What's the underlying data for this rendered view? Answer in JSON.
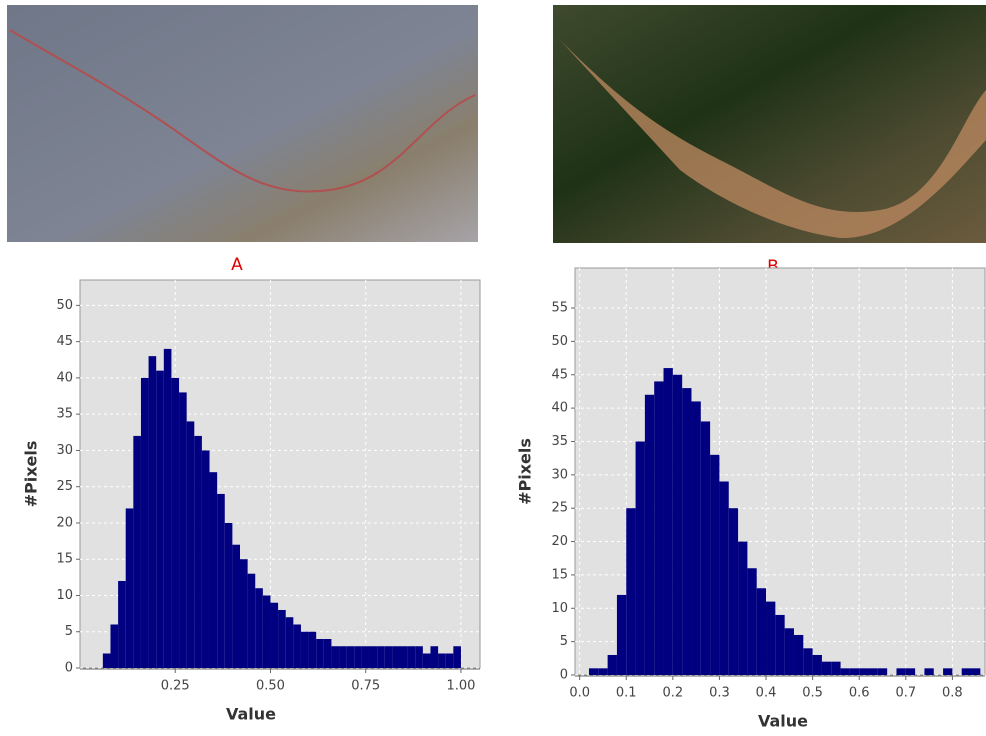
{
  "chart_data": [
    {
      "type": "histogram",
      "title": "A",
      "xlabel": "Value",
      "ylabel": "#Pixels",
      "color": "#000080",
      "grid": true,
      "bins": [
        0.06,
        0.08,
        0.1,
        0.12,
        0.14,
        0.16,
        0.18,
        0.2,
        0.22,
        0.24,
        0.26,
        0.28,
        0.3,
        0.32,
        0.34,
        0.36,
        0.38,
        0.4,
        0.42,
        0.44,
        0.46,
        0.48,
        0.5,
        0.52,
        0.54,
        0.56,
        0.58,
        0.6,
        0.62,
        0.64,
        0.66,
        0.68,
        0.7,
        0.72,
        0.74,
        0.76,
        0.78,
        0.8,
        0.82,
        0.84,
        0.86,
        0.88,
        0.9,
        0.92,
        0.94,
        0.96,
        0.98,
        1.0
      ],
      "values": [
        2,
        6,
        12,
        22,
        32,
        40,
        43,
        41,
        44,
        40,
        38,
        34,
        32,
        30,
        27,
        24,
        20,
        17,
        15,
        13,
        11,
        10,
        9,
        8,
        7,
        6,
        5,
        5,
        4,
        4,
        3,
        3,
        3,
        3,
        3,
        3,
        3,
        3,
        3,
        3,
        3,
        3,
        2,
        3,
        2,
        2,
        3
      ],
      "xlim": [
        0,
        1.05
      ],
      "ylim": [
        0,
        53.5
      ],
      "xticks": [
        0.25,
        {
          "value": 0.5,
          "label": "0.50"
        },
        0.75,
        {
          "value": 1,
          "label": "1.00"
        }
      ],
      "yticks": [
        0,
        5,
        10,
        15,
        20,
        25,
        30,
        35,
        40,
        45,
        50
      ]
    },
    {
      "type": "histogram",
      "title": "B",
      "xlabel": "Value",
      "ylabel": "#Pixels",
      "color": "#000080",
      "grid": true,
      "bins": [
        0.02,
        0.04,
        0.06,
        0.08,
        0.1,
        0.12,
        0.14,
        0.16,
        0.18,
        0.2,
        0.22,
        0.24,
        0.26,
        0.28,
        0.3,
        0.32,
        0.34,
        0.36,
        0.38,
        0.4,
        0.42,
        0.44,
        0.46,
        0.48,
        0.5,
        0.52,
        0.54,
        0.56,
        0.58,
        0.6,
        0.62,
        0.64,
        0.66,
        0.68,
        0.7,
        0.72,
        0.74,
        0.76,
        0.78,
        0.8,
        0.82,
        0.84,
        0.86
      ],
      "values": [
        1,
        1,
        3,
        12,
        25,
        35,
        42,
        44,
        46,
        45,
        43,
        41,
        38,
        33,
        29,
        25,
        20,
        16,
        13,
        11,
        9,
        7,
        6,
        4,
        3,
        2,
        2,
        1,
        1,
        1,
        1,
        1,
        0,
        1,
        1,
        0,
        1,
        0,
        1,
        0,
        1,
        1
      ],
      "xlim": [
        -0.01,
        0.87
      ],
      "ylim": [
        0,
        61
      ],
      "xticks": [
        {
          "value": 0,
          "label": "0.0"
        },
        0.1,
        0.2,
        0.3,
        0.4,
        0.5,
        0.6,
        0.7,
        0.8
      ],
      "yticks": [
        0,
        5,
        10,
        15,
        20,
        25,
        30,
        35,
        40,
        45,
        50,
        55
      ]
    }
  ]
}
